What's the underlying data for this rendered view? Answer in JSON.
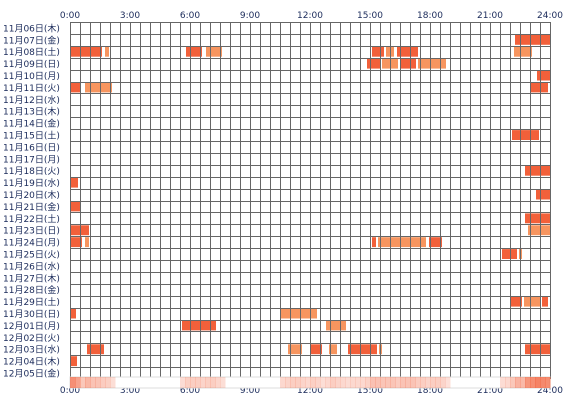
{
  "chart_data": {
    "type": "heatmap",
    "title": "",
    "xlabel": "",
    "ylabel": "",
    "x_range_hours": [
      0,
      24
    ],
    "x_tick_labels": [
      "0:00",
      "3:00",
      "6:00",
      "9:00",
      "12:00",
      "15:00",
      "18:00",
      "21:00",
      "24:00"
    ],
    "grid": true,
    "legend": "none",
    "colors": {
      "activity": "#f2603a",
      "activity_light": "#f7955f",
      "grid": "#666666",
      "summary_base": "#ffe2d2"
    },
    "dates": [
      "11月06日(木)",
      "11月07日(金)",
      "11月08日(土)",
      "11月09日(日)",
      "11月10日(月)",
      "11月11日(火)",
      "11月12日(水)",
      "11月13日(木)",
      "11月14日(金)",
      "11月15日(土)",
      "11月16日(日)",
      "11月17日(月)",
      "11月18日(火)",
      "11月19日(水)",
      "11月20日(木)",
      "11月21日(金)",
      "11月22日(土)",
      "11月23日(日)",
      "11月24日(月)",
      "11月25日(火)",
      "11月26日(水)",
      "11月27日(木)",
      "11月28日(金)",
      "11月29日(土)",
      "11月30日(日)",
      "12月01日(月)",
      "12月02日(火)",
      "12月03日(水)",
      "12月04日(木)",
      "12月05日(金)"
    ],
    "series": [
      {
        "date": "11月06日(木)",
        "intervals": []
      },
      {
        "date": "11月07日(金)",
        "intervals": [
          [
            22.25,
            24
          ]
        ]
      },
      {
        "date": "11月08日(土)",
        "intervals": [
          [
            0.0,
            1.6
          ],
          [
            1.75,
            1.95
          ],
          [
            5.8,
            6.6
          ],
          [
            6.8,
            7.6
          ],
          [
            15.1,
            15.7
          ],
          [
            15.8,
            16.2
          ],
          [
            16.35,
            17.4
          ],
          [
            22.2,
            23.1
          ]
        ]
      },
      {
        "date": "11月09日(日)",
        "intervals": [
          [
            14.85,
            15.5
          ],
          [
            15.6,
            16.4
          ],
          [
            16.5,
            17.3
          ],
          [
            17.4,
            18.8
          ]
        ]
      },
      {
        "date": "11月10日(月)",
        "intervals": [
          [
            23.35,
            24
          ]
        ]
      },
      {
        "date": "11月11日(火)",
        "intervals": [
          [
            0.0,
            0.5
          ],
          [
            0.75,
            2.1
          ],
          [
            23.05,
            23.9
          ]
        ]
      },
      {
        "date": "11月12日(水)",
        "intervals": []
      },
      {
        "date": "11月13日(木)",
        "intervals": []
      },
      {
        "date": "11月14日(金)",
        "intervals": []
      },
      {
        "date": "11月15日(土)",
        "intervals": [
          [
            22.1,
            23.45
          ]
        ]
      },
      {
        "date": "11月16日(日)",
        "intervals": []
      },
      {
        "date": "11月17日(月)",
        "intervals": []
      },
      {
        "date": "11月18日(火)",
        "intervals": [
          [
            22.75,
            24
          ]
        ]
      },
      {
        "date": "11月19日(水)",
        "intervals": [
          [
            0.0,
            0.4
          ]
        ]
      },
      {
        "date": "11月20日(木)",
        "intervals": [
          [
            23.3,
            24
          ]
        ]
      },
      {
        "date": "11月21日(金)",
        "intervals": [
          [
            0.0,
            0.55
          ]
        ]
      },
      {
        "date": "11月22日(土)",
        "intervals": [
          [
            22.75,
            24
          ]
        ]
      },
      {
        "date": "11月23日(日)",
        "intervals": [
          [
            0.0,
            0.95
          ],
          [
            22.9,
            24
          ]
        ]
      },
      {
        "date": "11月24日(月)",
        "intervals": [
          [
            0.0,
            0.6
          ],
          [
            0.75,
            0.95
          ],
          [
            15.1,
            15.3
          ],
          [
            15.4,
            17.8
          ],
          [
            17.95,
            18.6
          ]
        ]
      },
      {
        "date": "11月25日(火)",
        "intervals": [
          [
            21.6,
            22.35
          ],
          [
            22.45,
            22.6
          ]
        ]
      },
      {
        "date": "11月26日(水)",
        "intervals": []
      },
      {
        "date": "11月27日(木)",
        "intervals": []
      },
      {
        "date": "11月28日(金)",
        "intervals": []
      },
      {
        "date": "11月29日(土)",
        "intervals": [
          [
            22.05,
            22.6
          ],
          [
            22.7,
            23.5
          ],
          [
            23.6,
            23.9
          ]
        ]
      },
      {
        "date": "11月30日(日)",
        "intervals": [
          [
            0.0,
            0.3
          ],
          [
            10.5,
            12.35
          ]
        ]
      },
      {
        "date": "12月01日(月)",
        "intervals": [
          [
            5.6,
            7.3
          ],
          [
            12.8,
            13.8
          ]
        ]
      },
      {
        "date": "12月02日(火)",
        "intervals": []
      },
      {
        "date": "12月03日(水)",
        "intervals": [
          [
            0.85,
            1.7
          ],
          [
            10.9,
            11.6
          ],
          [
            12.05,
            12.6
          ],
          [
            12.95,
            13.35
          ],
          [
            13.9,
            15.35
          ],
          [
            15.45,
            15.6
          ],
          [
            22.75,
            24
          ]
        ]
      },
      {
        "date": "12月04日(木)",
        "intervals": [
          [
            0.0,
            0.35
          ]
        ]
      },
      {
        "date": "12月05日(金)",
        "intervals": []
      }
    ]
  }
}
